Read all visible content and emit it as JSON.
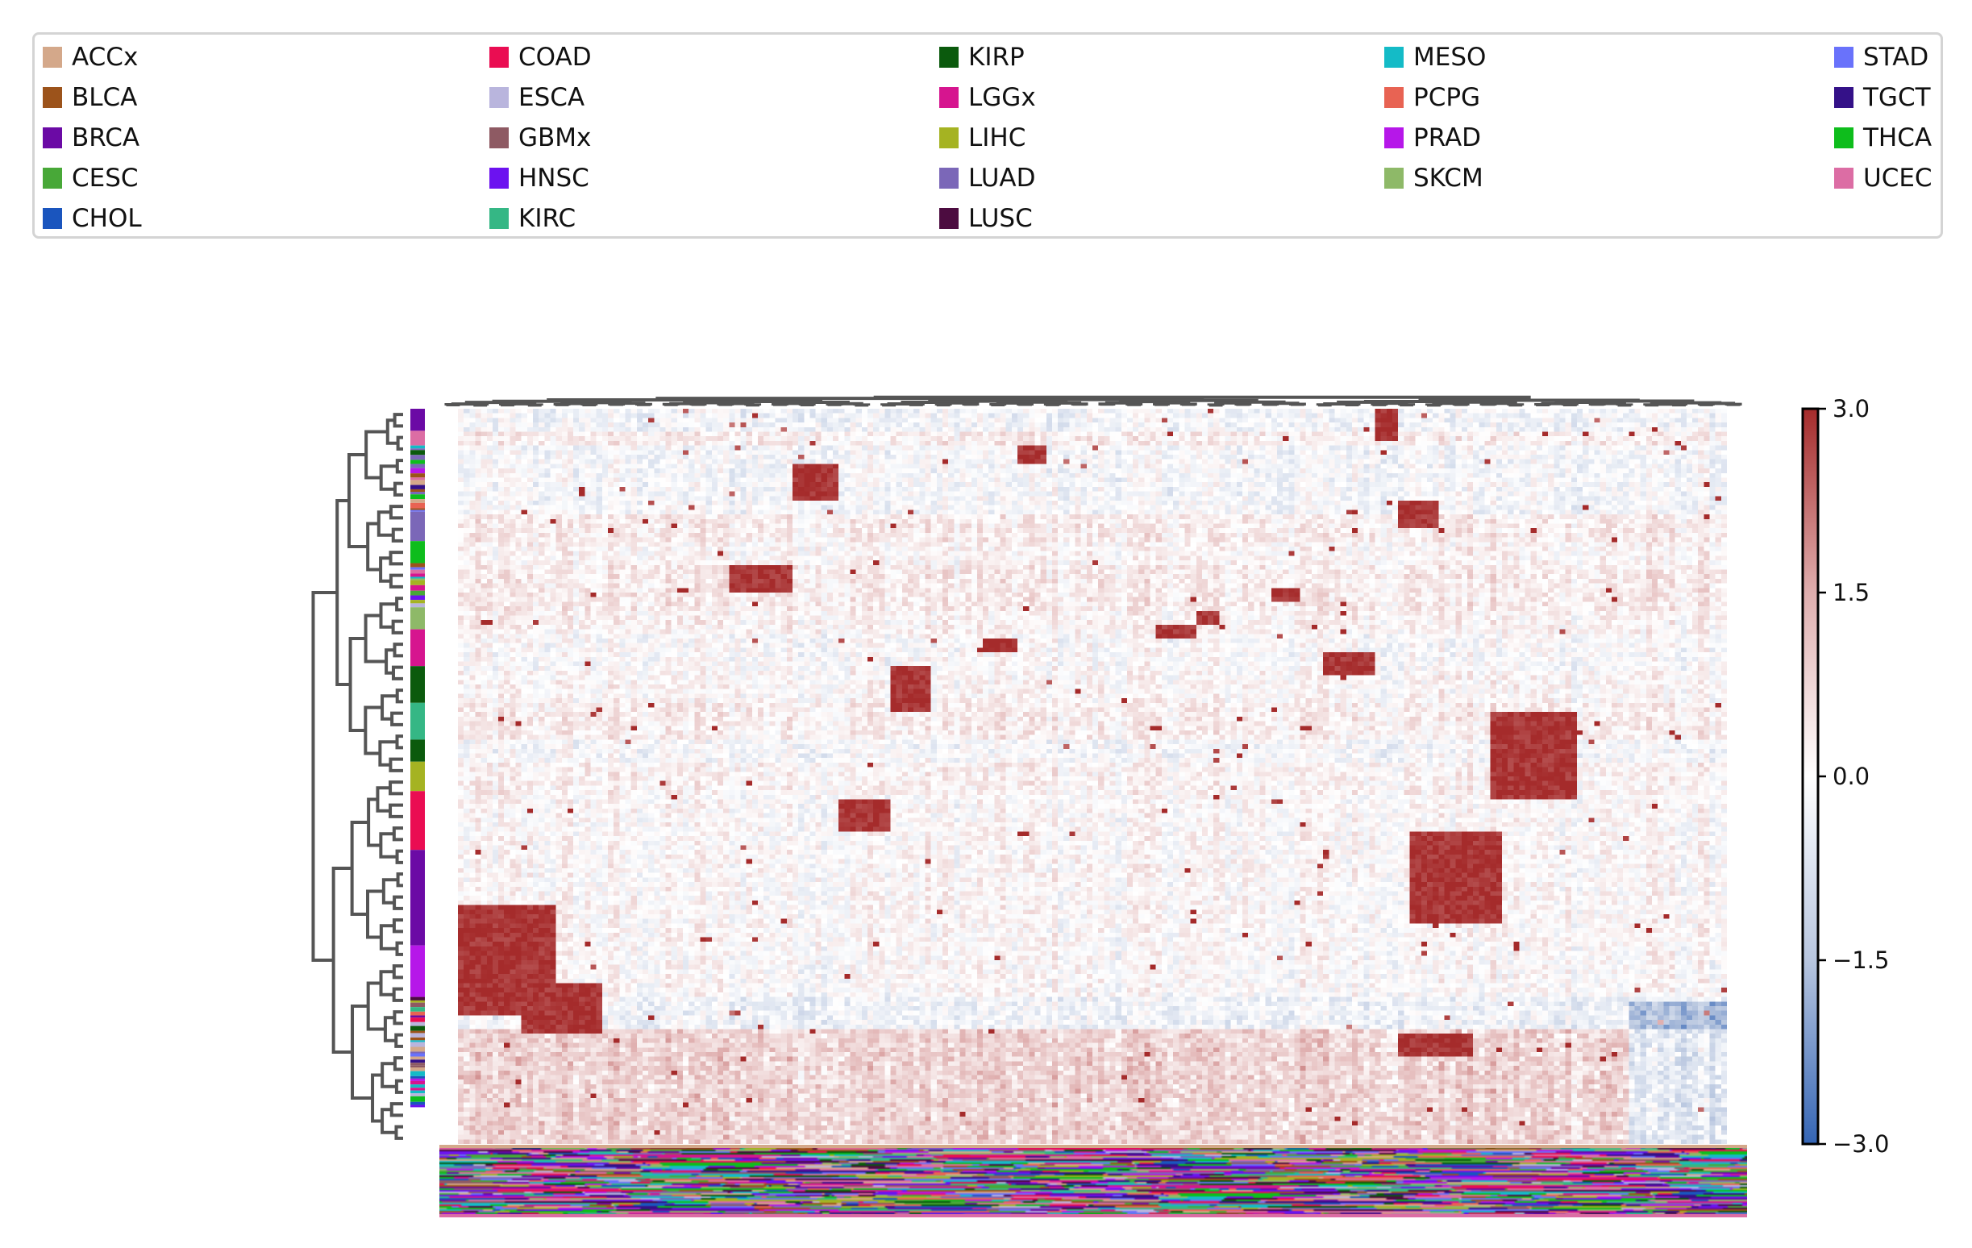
{
  "chart_data": {
    "type": "heatmap",
    "title": "",
    "xlabel": "",
    "ylabel": "",
    "legend": {
      "placement": "top",
      "columns": 5,
      "entries": [
        {
          "name": "ACCx",
          "color": "#d4a88a"
        },
        {
          "name": "BLCA",
          "color": "#9c531b"
        },
        {
          "name": "BRCA",
          "color": "#6b0aa5"
        },
        {
          "name": "CESC",
          "color": "#48a838"
        },
        {
          "name": "CHOL",
          "color": "#1a55be"
        },
        {
          "name": "COAD",
          "color": "#ea0d52"
        },
        {
          "name": "ESCA",
          "color": "#b9b5dd"
        },
        {
          "name": "GBMx",
          "color": "#8e5a63"
        },
        {
          "name": "HNSC",
          "color": "#6c12f0"
        },
        {
          "name": "KIRC",
          "color": "#35b785"
        },
        {
          "name": "KIRP",
          "color": "#0b5a0d"
        },
        {
          "name": "LGGx",
          "color": "#d6158f"
        },
        {
          "name": "LIHC",
          "color": "#a5b322"
        },
        {
          "name": "LUAD",
          "color": "#7b67b8"
        },
        {
          "name": "LUSC",
          "color": "#4c0c40"
        },
        {
          "name": "MESO",
          "color": "#14bbc7"
        },
        {
          "name": "PCPG",
          "color": "#e86353"
        },
        {
          "name": "PRAD",
          "color": "#b617e9"
        },
        {
          "name": "SKCM",
          "color": "#8eb968"
        },
        {
          "name": "STAD",
          "color": "#6972fb"
        },
        {
          "name": "TGCT",
          "color": "#341188"
        },
        {
          "name": "THCA",
          "color": "#0ebd1c"
        },
        {
          "name": "UCEC",
          "color": "#dc6da4"
        }
      ]
    },
    "colorbar": {
      "min": -3.0,
      "max": 3.0,
      "ticks": [
        "3.0",
        "1.5",
        "0.0",
        "−1.5",
        "−3.0"
      ],
      "colormap": [
        "#3465b5",
        "#ffffff",
        "#a52b2b"
      ]
    },
    "row_clusters": [
      {
        "type": "BRCA",
        "frac": 0.03,
        "block": true
      },
      {
        "type": "UCEC",
        "frac": 0.02,
        "block": true
      },
      {
        "type": "mixed",
        "frac": 0.09,
        "block": false
      },
      {
        "type": "LUAD",
        "frac": 0.04,
        "block": true
      },
      {
        "type": "THCA",
        "frac": 0.03,
        "block": true
      },
      {
        "type": "mixed",
        "frac": 0.06,
        "block": false
      },
      {
        "type": "SKCM",
        "frac": 0.03,
        "block": true
      },
      {
        "type": "LGGx",
        "frac": 0.05,
        "block": true
      },
      {
        "type": "KIRP",
        "frac": 0.05,
        "block": true
      },
      {
        "type": "KIRC",
        "frac": 0.05,
        "block": true
      },
      {
        "type": "KIRP",
        "frac": 0.03,
        "block": true
      },
      {
        "type": "LIHC",
        "frac": 0.04,
        "block": true
      },
      {
        "type": "COAD",
        "frac": 0.08,
        "block": true
      },
      {
        "type": "BRCA",
        "frac": 0.13,
        "block": true
      },
      {
        "type": "PRAD",
        "frac": 0.07,
        "block": true
      },
      {
        "type": "mixed",
        "frac": 0.15,
        "block": false
      }
    ],
    "enriched_blocks": [
      {
        "row": [
          0.67,
          0.82
        ],
        "col": [
          0.0,
          0.075
        ]
      },
      {
        "row": [
          0.78,
          0.85
        ],
        "col": [
          0.05,
          0.11
        ]
      },
      {
        "row": [
          0.07,
          0.12
        ],
        "col": [
          0.26,
          0.3
        ]
      },
      {
        "row": [
          0.21,
          0.25
        ],
        "col": [
          0.21,
          0.26
        ]
      },
      {
        "row": [
          0.35,
          0.41
        ],
        "col": [
          0.34,
          0.37
        ]
      },
      {
        "row": [
          0.53,
          0.57
        ],
        "col": [
          0.3,
          0.34
        ]
      },
      {
        "row": [
          0.31,
          0.33
        ],
        "col": [
          0.41,
          0.44
        ]
      },
      {
        "row": [
          0.29,
          0.31
        ],
        "col": [
          0.55,
          0.58
        ]
      },
      {
        "row": [
          0.27,
          0.29
        ],
        "col": [
          0.58,
          0.6
        ]
      },
      {
        "row": [
          0.24,
          0.26
        ],
        "col": [
          0.64,
          0.66
        ]
      },
      {
        "row": [
          0.33,
          0.36
        ],
        "col": [
          0.68,
          0.72
        ]
      },
      {
        "row": [
          0.0,
          0.04
        ],
        "col": [
          0.72,
          0.74
        ]
      },
      {
        "row": [
          0.12,
          0.16
        ],
        "col": [
          0.74,
          0.77
        ]
      },
      {
        "row": [
          0.57,
          0.7
        ],
        "col": [
          0.75,
          0.82
        ]
      },
      {
        "row": [
          0.41,
          0.53
        ],
        "col": [
          0.81,
          0.88
        ]
      },
      {
        "row": [
          0.85,
          0.88
        ],
        "col": [
          0.74,
          0.8
        ]
      },
      {
        "row": [
          0.05,
          0.07
        ],
        "col": [
          0.44,
          0.46
        ]
      }
    ]
  }
}
